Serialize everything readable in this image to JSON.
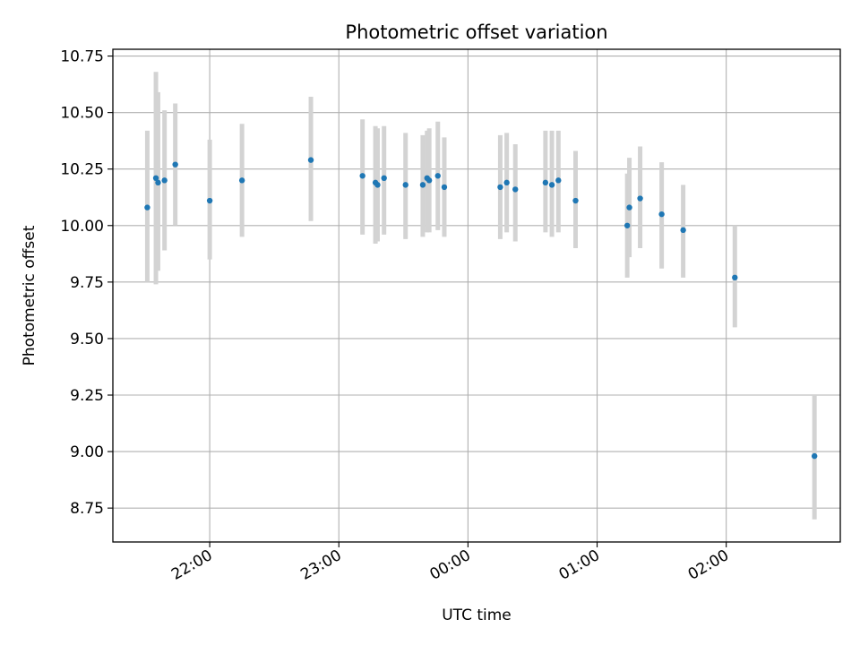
{
  "chart_data": {
    "type": "scatter",
    "title": "Photometric offset variation",
    "xlabel": "UTC time",
    "ylabel": "Photometric offset",
    "x_axis_kind": "time",
    "xlim": [
      "21:15",
      "02:53"
    ],
    "ylim": [
      8.6,
      10.78
    ],
    "grid": true,
    "legend": "none",
    "x_ticks": [
      "22:00",
      "23:00",
      "00:00",
      "01:00",
      "02:00"
    ],
    "y_ticks": [
      "8.75",
      "9.00",
      "9.25",
      "9.50",
      "9.75",
      "10.00",
      "10.25",
      "10.50",
      "10.75"
    ],
    "point_color": "#1f77b4",
    "errorbar_color": "#d3d3d3",
    "series": [
      {
        "x": [
          "21:31",
          "21:35",
          "21:36",
          "21:39",
          "21:44",
          "22:00",
          "22:15",
          "22:47",
          "23:11",
          "23:17",
          "23:18",
          "23:21",
          "23:31",
          "23:39",
          "23:41",
          "23:42",
          "23:46",
          "23:49",
          "00:15",
          "00:18",
          "00:22",
          "00:36",
          "00:39",
          "00:42",
          "00:50",
          "01:14",
          "01:15",
          "01:20",
          "01:30",
          "01:40",
          "02:04",
          "02:41"
        ],
        "y": [
          10.08,
          10.21,
          10.19,
          10.2,
          10.27,
          10.11,
          10.2,
          10.29,
          10.22,
          10.19,
          10.18,
          10.21,
          10.18,
          10.18,
          10.21,
          10.2,
          10.22,
          10.17,
          10.17,
          10.19,
          10.16,
          10.19,
          10.18,
          10.2,
          10.11,
          10.0,
          10.08,
          10.12,
          10.05,
          9.98,
          9.77,
          8.98
        ],
        "y_lo": [
          9.75,
          9.74,
          9.8,
          9.89,
          10.0,
          9.85,
          9.95,
          10.02,
          9.96,
          9.92,
          9.93,
          9.96,
          9.94,
          9.95,
          9.97,
          9.97,
          9.98,
          9.95,
          9.94,
          9.97,
          9.93,
          9.97,
          9.95,
          9.97,
          9.9,
          9.77,
          9.86,
          9.9,
          9.81,
          9.77,
          9.55,
          8.7
        ],
        "y_hi": [
          10.42,
          10.68,
          10.59,
          10.51,
          10.54,
          10.38,
          10.45,
          10.57,
          10.47,
          10.44,
          10.43,
          10.44,
          10.41,
          10.4,
          10.42,
          10.43,
          10.46,
          10.39,
          10.4,
          10.41,
          10.36,
          10.42,
          10.42,
          10.42,
          10.33,
          10.23,
          10.3,
          10.35,
          10.28,
          10.18,
          10.0,
          9.25
        ]
      }
    ]
  }
}
